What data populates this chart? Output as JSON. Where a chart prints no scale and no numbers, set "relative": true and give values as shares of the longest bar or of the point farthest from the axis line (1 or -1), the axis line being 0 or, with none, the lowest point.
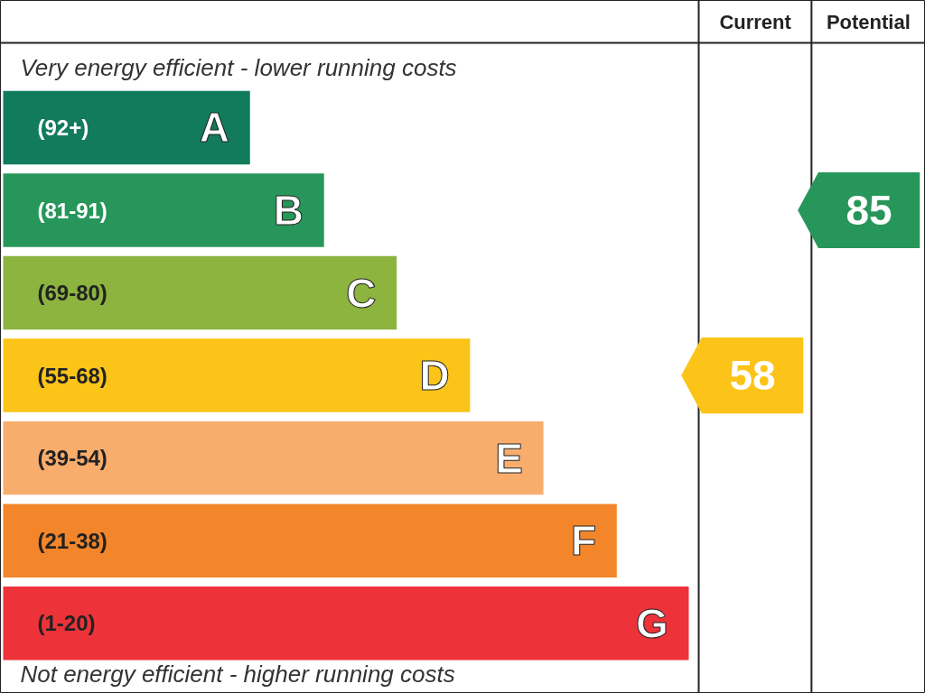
{
  "chart_data": {
    "type": "bar",
    "orientation": "horizontal",
    "relative": true,
    "categories": [
      "A",
      "B",
      "C",
      "D",
      "E",
      "F",
      "G"
    ],
    "values": [
      0.36,
      0.468,
      0.574,
      0.681,
      0.788,
      0.895,
      1
    ],
    "colors": [
      "#127b5c",
      "#27965a",
      "#8cb43f",
      "#fcc419",
      "#f8ad6c",
      "#f3852a",
      "#ee3239"
    ],
    "annotations": [
      "Current",
      "Potential",
      "Very energy efficient - lower running costs",
      "Not energy efficient - higher running costs",
      "(92+)",
      "(81-91)",
      "(69-80)",
      "(55-68)",
      "(39-54)",
      "(21-38)",
      "(1-20)",
      "58",
      "85"
    ],
    "grid": false
  }
}
